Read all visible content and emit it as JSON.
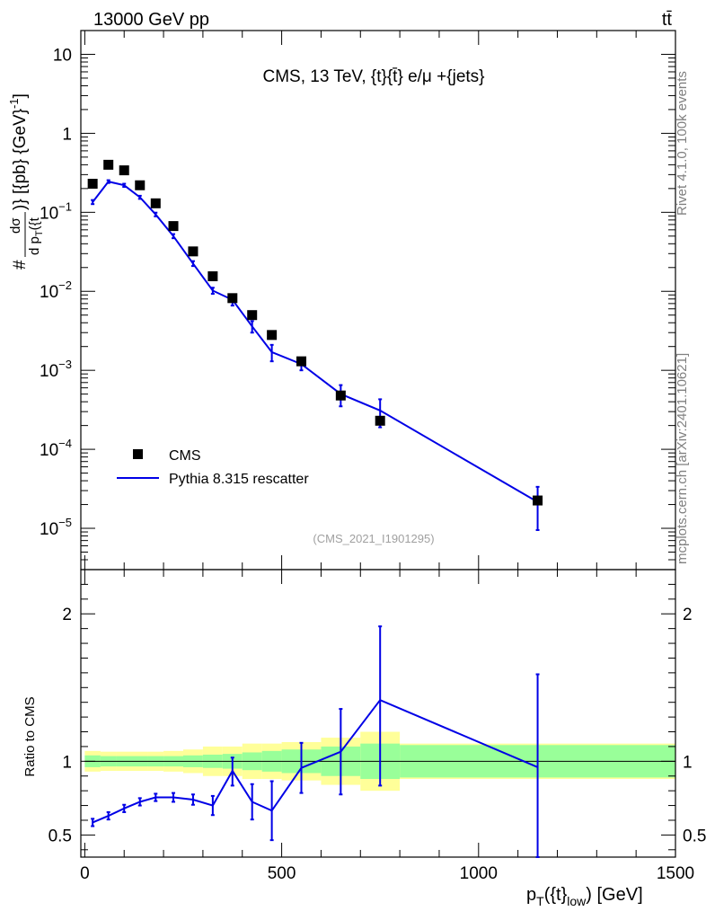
{
  "header": {
    "beam_label": "13000 GeV pp",
    "process_label": "tt̄"
  },
  "side_labels": {
    "rivet": "Rivet 4.1.0,  100k events",
    "source": "mcplots.cern.ch [arXiv:2401.10621]"
  },
  "colors": {
    "data": "#000000",
    "mc": "#0000e6",
    "band_inner": "#99ff99",
    "band_outer": "#ffff99"
  },
  "chart_data": [
    {
      "type": "line",
      "scale": "log",
      "title": "CMS, 13 TeV, {t}{t̄} e/μ +{jets}",
      "watermark": "(CMS_2021_I1901295)",
      "ylabel": "#dσ/d p_T({t_low)} [{pb} {GeV}^-1]",
      "xlabel": "",
      "xlim": [
        -10,
        1500
      ],
      "ylim": [
        3e-06,
        20
      ],
      "y_ticks": [
        {
          "value": 10,
          "base": "10",
          "exp": ""
        },
        {
          "value": 1,
          "base": "1",
          "exp": ""
        },
        {
          "value": 0.1,
          "base": "10",
          "exp": "−1"
        },
        {
          "value": 0.01,
          "base": "10",
          "exp": "−2"
        },
        {
          "value": 0.001,
          "base": "10",
          "exp": "−3"
        },
        {
          "value": 0.0001,
          "base": "10",
          "exp": "−4"
        },
        {
          "value": 1e-05,
          "base": "10",
          "exp": "−5"
        }
      ],
      "legend": [
        {
          "label": "CMS",
          "style": "marker"
        },
        {
          "label": "Pythia 8.315 rescatter",
          "style": "line"
        }
      ],
      "series": [
        {
          "name": "CMS",
          "style": "markers",
          "x": [
            20,
            60,
            100,
            140,
            180,
            225,
            275,
            325,
            375,
            425,
            475,
            550,
            650,
            750,
            1150
          ],
          "values": [
            0.23,
            0.4,
            0.34,
            0.22,
            0.13,
            0.067,
            0.032,
            0.0155,
            0.0082,
            0.005,
            0.0028,
            0.0013,
            0.00048,
            0.00023,
            2.25e-05
          ]
        },
        {
          "name": "Pythia 8.315 rescatter",
          "style": "line",
          "x": [
            20,
            60,
            100,
            140,
            180,
            225,
            275,
            325,
            375,
            425,
            475,
            550,
            650,
            750,
            1150
          ],
          "values": [
            0.135,
            0.245,
            0.22,
            0.155,
            0.094,
            0.05,
            0.0225,
            0.0102,
            0.0078,
            0.0036,
            0.0017,
            0.0012,
            0.0005,
            0.00031,
            2.15e-05
          ],
          "err_low": [
            0.008,
            0.01,
            0.01,
            0.007,
            0.005,
            0.003,
            0.0016,
            0.0009,
            0.0012,
            0.0006,
            0.0004,
            0.0002,
            0.00015,
            0.00012,
            1.2e-05
          ],
          "err_high": [
            0.008,
            0.01,
            0.01,
            0.007,
            0.005,
            0.003,
            0.0016,
            0.0009,
            0.0012,
            0.0006,
            0.0004,
            0.0002,
            0.00015,
            0.00012,
            1.2e-05
          ]
        }
      ]
    },
    {
      "type": "line",
      "scale": "linear",
      "title": "",
      "xlabel": "p_T({t}_low) [GeV]",
      "ylabel": "Ratio to CMS",
      "xlim": [
        -10,
        1500
      ],
      "ylim": [
        0.35,
        2.3
      ],
      "x_ticks": [
        0,
        500,
        1000,
        1500
      ],
      "y_ticks": [
        0.5,
        1,
        2
      ],
      "reference_line": 1,
      "bands": {
        "edges": [
          0,
          40,
          80,
          120,
          160,
          200,
          250,
          300,
          350,
          400,
          450,
          500,
          600,
          700,
          800,
          1500
        ],
        "inner": [
          0.04,
          0.035,
          0.035,
          0.035,
          0.035,
          0.035,
          0.04,
          0.045,
          0.05,
          0.06,
          0.07,
          0.08,
          0.1,
          0.12,
          0.11
        ],
        "outer": [
          0.07,
          0.065,
          0.065,
          0.065,
          0.065,
          0.07,
          0.08,
          0.1,
          0.1,
          0.12,
          0.12,
          0.13,
          0.16,
          0.2,
          0.12
        ]
      },
      "series": [
        {
          "name": "Pythia 8.315 rescatter / CMS",
          "x": [
            20,
            60,
            100,
            140,
            180,
            225,
            275,
            325,
            375,
            425,
            475,
            550,
            650,
            750,
            1150
          ],
          "values": [
            0.585,
            0.63,
            0.68,
            0.725,
            0.755,
            0.755,
            0.74,
            0.7,
            0.935,
            0.725,
            0.665,
            0.955,
            1.065,
            1.415,
            0.96
          ],
          "err_low": [
            0.025,
            0.025,
            0.025,
            0.025,
            0.025,
            0.03,
            0.035,
            0.065,
            0.1,
            0.12,
            0.2,
            0.17,
            0.29,
            0.58,
            0.65
          ],
          "err_high": [
            0.025,
            0.025,
            0.025,
            0.025,
            0.025,
            0.03,
            0.035,
            0.065,
            0.09,
            0.12,
            0.2,
            0.17,
            0.29,
            0.5,
            0.63
          ]
        }
      ]
    }
  ]
}
